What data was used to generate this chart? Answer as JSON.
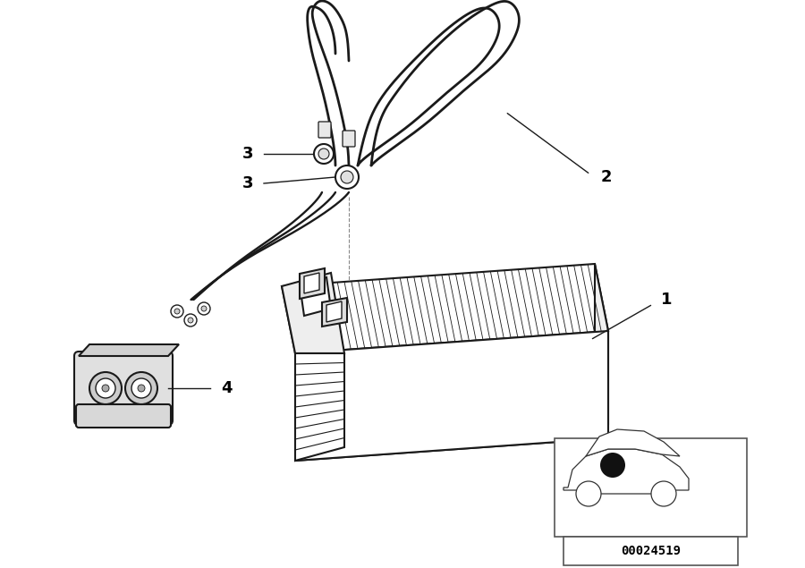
{
  "bg_color": "#ffffff",
  "line_color": "#1a1a1a",
  "label_color": "#000000",
  "fig_width": 9.0,
  "fig_height": 6.35,
  "dpi": 100,
  "diagram_id": "00024519"
}
